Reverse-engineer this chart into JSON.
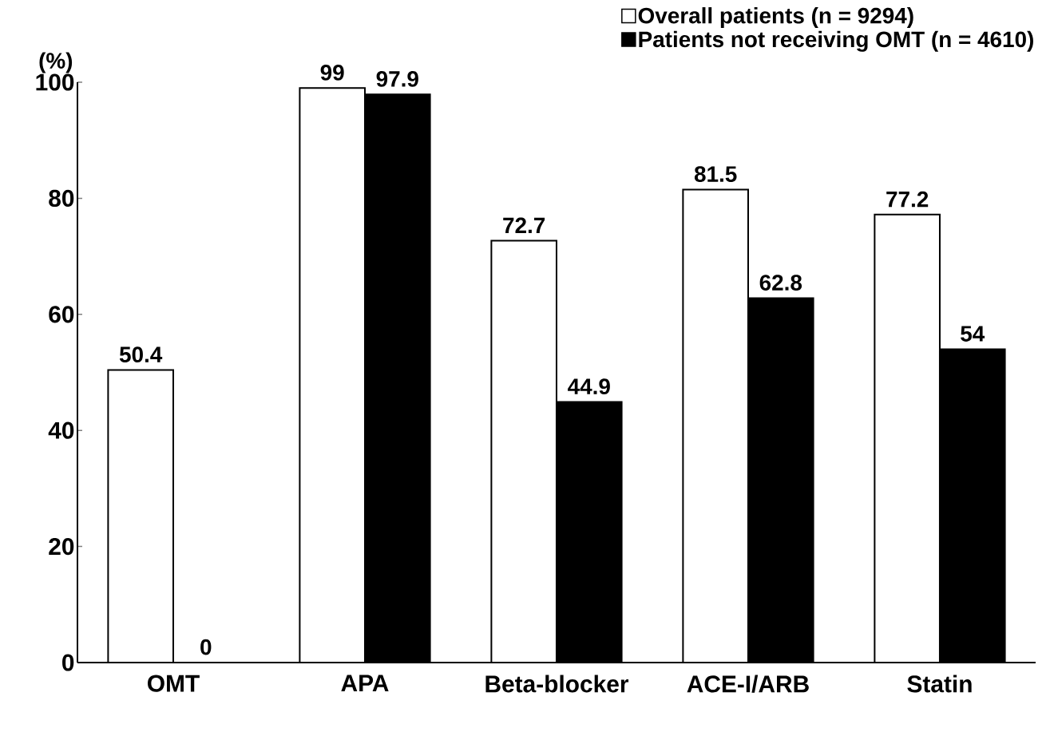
{
  "chart_data": {
    "type": "bar",
    "ylabel": "(%)",
    "categories": [
      "OMT",
      "APA",
      "Beta-blocker",
      "ACE-I/ARB",
      "Statin"
    ],
    "series": [
      {
        "name": "Overall patients (n = 9294)",
        "color": "#ffffff",
        "values": [
          50.4,
          99,
          72.7,
          81.5,
          77.2
        ],
        "value_labels": [
          "50.4",
          "99",
          "72.7",
          "81.5",
          "77.2"
        ]
      },
      {
        "name": "Patients not receiving OMT (n = 4610)",
        "color": "#000000",
        "values": [
          0,
          97.9,
          44.9,
          62.8,
          54
        ],
        "value_labels": [
          "0",
          "97.9",
          "44.9",
          "62.8",
          "54"
        ]
      }
    ],
    "ylim": [
      0,
      100
    ],
    "yticks": [
      0,
      20,
      40,
      60,
      80,
      100
    ],
    "grid": false,
    "legend": "top right"
  }
}
